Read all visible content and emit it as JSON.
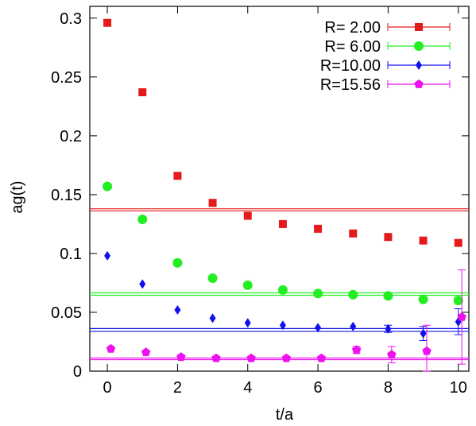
{
  "chart_data": {
    "type": "scatter",
    "title": "",
    "xlabel": "t/a",
    "ylabel": "ag(t)",
    "xlim": [
      -0.5,
      10.3
    ],
    "ylim": [
      0,
      0.31
    ],
    "grid": false,
    "legend_position": "top-right",
    "x_ticks": [
      0,
      2,
      4,
      6,
      8,
      10
    ],
    "x_tick_labels": [
      "0",
      "2",
      "4",
      "6",
      "8",
      "10"
    ],
    "y_ticks": [
      0,
      0.05,
      0.1,
      0.15,
      0.2,
      0.25,
      0.3
    ],
    "y_tick_labels": [
      "0",
      "0.05",
      "0.1",
      "0.15",
      "0.2",
      "0.25",
      "0.3"
    ],
    "series": [
      {
        "name": "R= 2.00",
        "color": "#e41a1c",
        "marker": "square",
        "x": [
          0,
          1,
          2,
          3,
          4,
          5,
          6,
          7,
          8,
          9,
          10
        ],
        "y": [
          0.296,
          0.237,
          0.166,
          0.143,
          0.132,
          0.125,
          0.121,
          0.117,
          0.114,
          0.111,
          0.109
        ],
        "err": [
          0.001,
          0.001,
          0.001,
          0.001,
          0.001,
          0.001,
          0.001,
          0.001,
          0.001,
          0.001,
          0.002
        ],
        "fit_band": [
          0.1362,
          0.138
        ]
      },
      {
        "name": "R= 6.00",
        "color": "#22ee22",
        "marker": "circle",
        "x": [
          0,
          1,
          2,
          3,
          4,
          5,
          6,
          7,
          8,
          9,
          10
        ],
        "y": [
          0.157,
          0.129,
          0.092,
          0.079,
          0.073,
          0.069,
          0.066,
          0.065,
          0.064,
          0.061,
          0.06
        ],
        "err": [
          0.001,
          0.001,
          0.001,
          0.001,
          0.001,
          0.001,
          0.001,
          0.001,
          0.001,
          0.002,
          0.003
        ],
        "fit_band": [
          0.0645,
          0.0665
        ]
      },
      {
        "name": "R=10.00",
        "color": "#1010ee",
        "marker": "diamond",
        "x": [
          0,
          1,
          2,
          3,
          4,
          5,
          6,
          7,
          8,
          9,
          10
        ],
        "y": [
          0.098,
          0.074,
          0.052,
          0.045,
          0.041,
          0.039,
          0.037,
          0.038,
          0.036,
          0.032,
          0.042
        ],
        "err": [
          0.001,
          0.001,
          0.001,
          0.001,
          0.001,
          0.001,
          0.001,
          0.002,
          0.003,
          0.006,
          0.011
        ],
        "fit_band": [
          0.0338,
          0.0362
        ]
      },
      {
        "name": "R=15.56",
        "color": "#ee10ee",
        "marker": "pentagon",
        "x": [
          0,
          1,
          2,
          3,
          4,
          5,
          6,
          7,
          8,
          9,
          10
        ],
        "y": [
          0.019,
          0.016,
          0.012,
          0.011,
          0.011,
          0.011,
          0.011,
          0.018,
          0.014,
          0.017,
          0.046
        ],
        "err": [
          0.001,
          0.001,
          0.001,
          0.001,
          0.001,
          0.001,
          0.001,
          0.003,
          0.007,
          0.022,
          0.04
        ],
        "x_offset": 0.1,
        "fit_band": [
          0.0098,
          0.0112
        ]
      }
    ]
  }
}
